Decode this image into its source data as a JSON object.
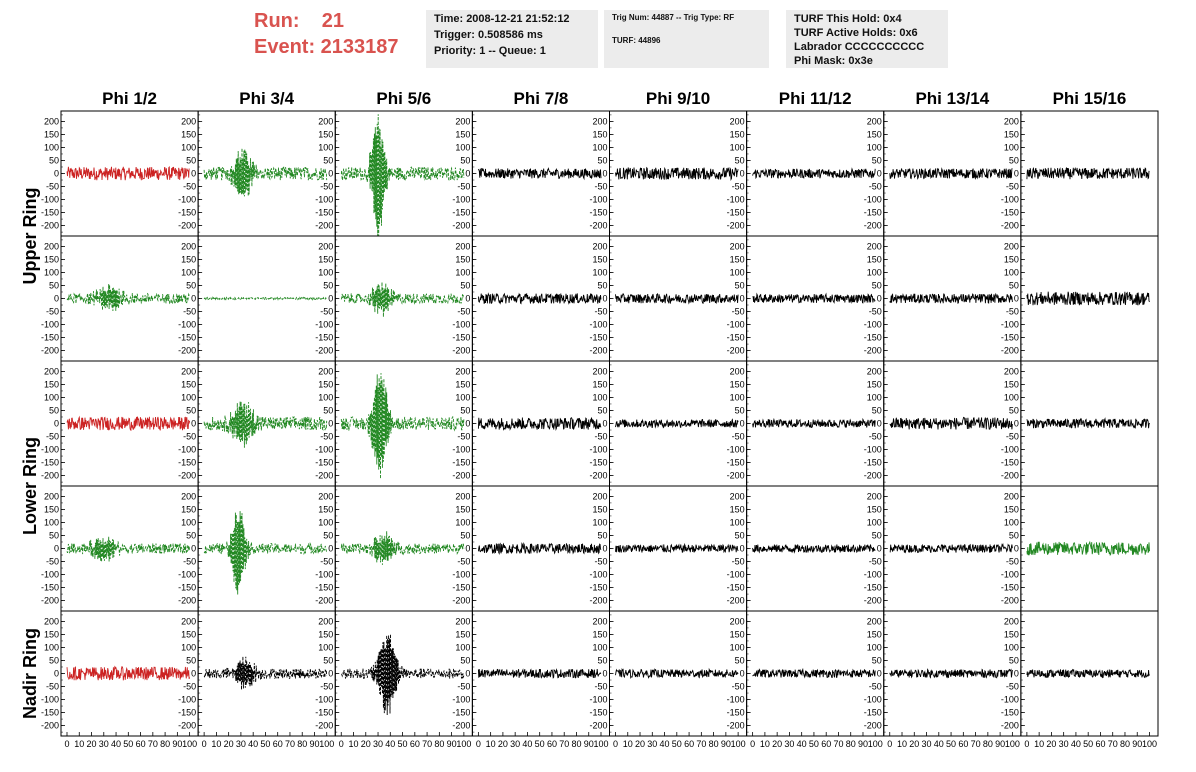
{
  "header": {
    "run": "Run:    21",
    "event": "Event: 2133187",
    "box1": [
      "Time: 2008-12-21 21:52:12",
      "Trigger: 0.508586 ms",
      "Priority: 1 -- Queue: 1"
    ],
    "box2": [
      "Trig Num: 44887 -- Trig Type: RF",
      "TURF: 44896"
    ],
    "box3": [
      "TURF This Hold: 0x4",
      "TURF Active Holds: 0x6",
      "Labrador CCCCCCCCCC",
      "Phi Mask: 0x3e"
    ]
  },
  "chart_data": {
    "type": "line",
    "columns": [
      "Phi 1/2",
      "Phi 3/4",
      "Phi 5/6",
      "Phi 7/8",
      "Phi 9/10",
      "Phi 11/12",
      "Phi 13/14",
      "Phi 15/16"
    ],
    "ring_labels": [
      "Upper Ring",
      "Lower Ring",
      "Nadir Ring"
    ],
    "ylim": [
      -240,
      240
    ],
    "xlim": [
      0,
      100
    ],
    "y_ticks": [
      200,
      150,
      100,
      50,
      0,
      -50,
      -100,
      -150,
      -200
    ],
    "x_tick_labels": [
      "0",
      "10",
      "20",
      "30",
      "40",
      "50",
      "60",
      "70",
      "80",
      "90",
      "100"
    ],
    "colors": {
      "red": "#cc2222",
      "green": "#228822",
      "black": "#000000"
    },
    "panels": [
      [
        {
          "color": "red",
          "dashed": false,
          "noise": 20,
          "pulse": null
        },
        {
          "color": "green",
          "dashed": true,
          "noise": 20,
          "pulse": {
            "center": 32,
            "amp": 90,
            "width": 6
          }
        },
        {
          "color": "green",
          "dashed": true,
          "noise": 20,
          "pulse": {
            "center": 30,
            "amp": 240,
            "width": 4
          }
        },
        {
          "color": "black",
          "dashed": false,
          "noise": 15,
          "pulse": null
        },
        {
          "color": "black",
          "dashed": false,
          "noise": 18,
          "pulse": null
        },
        {
          "color": "black",
          "dashed": false,
          "noise": 14,
          "pulse": null
        },
        {
          "color": "black",
          "dashed": false,
          "noise": 15,
          "pulse": null
        },
        {
          "color": "black",
          "dashed": false,
          "noise": 17,
          "pulse": null
        }
      ],
      [
        {
          "color": "green",
          "dashed": true,
          "noise": 15,
          "pulse": {
            "center": 35,
            "amp": 45,
            "width": 8
          }
        },
        {
          "color": "green",
          "dashed": true,
          "noise": 3,
          "pulse": null
        },
        {
          "color": "green",
          "dashed": true,
          "noise": 15,
          "pulse": {
            "center": 33,
            "amp": 60,
            "width": 6
          }
        },
        {
          "color": "black",
          "dashed": false,
          "noise": 15,
          "pulse": null
        },
        {
          "color": "black",
          "dashed": false,
          "noise": 14,
          "pulse": null
        },
        {
          "color": "black",
          "dashed": false,
          "noise": 13,
          "pulse": null
        },
        {
          "color": "black",
          "dashed": false,
          "noise": 14,
          "pulse": null
        },
        {
          "color": "black",
          "dashed": false,
          "noise": 20,
          "pulse": null
        }
      ],
      [
        {
          "color": "red",
          "dashed": false,
          "noise": 20,
          "pulse": null
        },
        {
          "color": "green",
          "dashed": true,
          "noise": 20,
          "pulse": {
            "center": 32,
            "amp": 80,
            "width": 7
          }
        },
        {
          "color": "green",
          "dashed": true,
          "noise": 20,
          "pulse": {
            "center": 32,
            "amp": 200,
            "width": 5
          }
        },
        {
          "color": "black",
          "dashed": false,
          "noise": 18,
          "pulse": null
        },
        {
          "color": "black",
          "dashed": false,
          "noise": 12,
          "pulse": null
        },
        {
          "color": "black",
          "dashed": false,
          "noise": 12,
          "pulse": null
        },
        {
          "color": "black",
          "dashed": false,
          "noise": 18,
          "pulse": null
        },
        {
          "color": "black",
          "dashed": false,
          "noise": 14,
          "pulse": null
        }
      ],
      [
        {
          "color": "green",
          "dashed": true,
          "noise": 15,
          "pulse": {
            "center": 30,
            "amp": 40,
            "width": 8
          }
        },
        {
          "color": "green",
          "dashed": true,
          "noise": 15,
          "pulse": {
            "center": 28,
            "amp": 170,
            "width": 4
          }
        },
        {
          "color": "green",
          "dashed": true,
          "noise": 15,
          "pulse": {
            "center": 35,
            "amp": 60,
            "width": 6
          }
        },
        {
          "color": "black",
          "dashed": false,
          "noise": 15,
          "pulse": null
        },
        {
          "color": "black",
          "dashed": false,
          "noise": 12,
          "pulse": null
        },
        {
          "color": "black",
          "dashed": false,
          "noise": 12,
          "pulse": null
        },
        {
          "color": "black",
          "dashed": false,
          "noise": 12,
          "pulse": null
        },
        {
          "color": "green",
          "dashed": false,
          "noise": 20,
          "pulse": null
        }
      ],
      [
        {
          "color": "red",
          "dashed": false,
          "noise": 20,
          "pulse": null
        },
        {
          "color": "black",
          "dashed": true,
          "noise": 15,
          "pulse": {
            "center": 33,
            "amp": 60,
            "width": 6
          }
        },
        {
          "color": "black",
          "dashed": true,
          "noise": 15,
          "pulse": {
            "center": 38,
            "amp": 160,
            "width": 6
          }
        },
        {
          "color": "black",
          "dashed": false,
          "noise": 13,
          "pulse": null
        },
        {
          "color": "black",
          "dashed": false,
          "noise": 12,
          "pulse": null
        },
        {
          "color": "black",
          "dashed": false,
          "noise": 12,
          "pulse": null
        },
        {
          "color": "black",
          "dashed": false,
          "noise": 12,
          "pulse": null
        },
        {
          "color": "black",
          "dashed": false,
          "noise": 12,
          "pulse": null
        }
      ]
    ]
  }
}
